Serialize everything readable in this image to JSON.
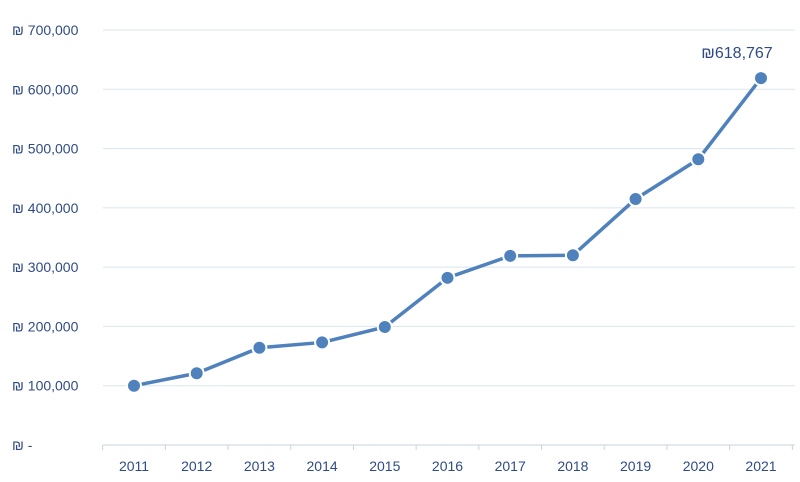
{
  "chart_data": {
    "type": "line",
    "title": "",
    "xlabel": "",
    "ylabel": "",
    "categories": [
      "2011",
      "2012",
      "2013",
      "2014",
      "2015",
      "2016",
      "2017",
      "2018",
      "2019",
      "2020",
      "2021"
    ],
    "series": [
      {
        "values": [
          100000,
          121000,
          164000,
          173000,
          199000,
          282000,
          319000,
          320000,
          415000,
          482000,
          618767
        ],
        "color": "#4f81bd"
      }
    ],
    "ylim": [
      0,
      700000
    ],
    "yticks": [
      0,
      100000,
      200000,
      300000,
      400000,
      500000,
      600000,
      700000
    ],
    "ytick_labels": [
      "₪ -",
      "₪ 100,000",
      "₪ 200,000",
      "₪ 300,000",
      "₪ 400,000",
      "₪ 500,000",
      "₪ 600,000",
      "₪ 700,000"
    ],
    "data_labels": [
      {
        "category": "2021",
        "text": "₪618,767"
      }
    ],
    "grid": true,
    "legend": "none"
  }
}
